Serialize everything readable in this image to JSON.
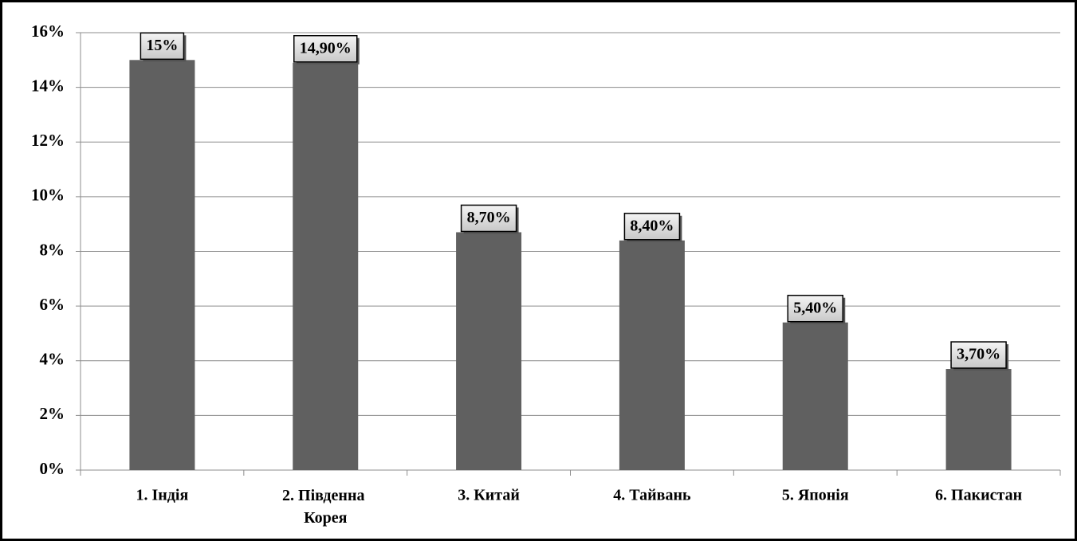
{
  "chart_data": {
    "type": "bar",
    "categories": [
      "1. Індія",
      "2. Південна Корея",
      "3. Китай",
      "4. Тайвань",
      "5. Японія",
      "6. Пакистан"
    ],
    "values": [
      15,
      14.9,
      8.7,
      8.4,
      5.4,
      3.7
    ],
    "value_labels": [
      "15%",
      "14,90%",
      "8,70%",
      "8,40%",
      "5,40%",
      "3,70%"
    ],
    "color": "#606060",
    "ylim": [
      0,
      16
    ],
    "yticks": [
      {
        "value": 0,
        "label": "0%"
      },
      {
        "value": 2,
        "label": "2%"
      },
      {
        "value": 4,
        "label": "4%"
      },
      {
        "value": 6,
        "label": "6%"
      },
      {
        "value": 8,
        "label": "8%"
      },
      {
        "value": 10,
        "label": "10%"
      },
      {
        "value": 12,
        "label": "12%"
      },
      {
        "value": 14,
        "label": "14%"
      },
      {
        "value": 16,
        "label": "16%"
      }
    ],
    "grid": true
  }
}
